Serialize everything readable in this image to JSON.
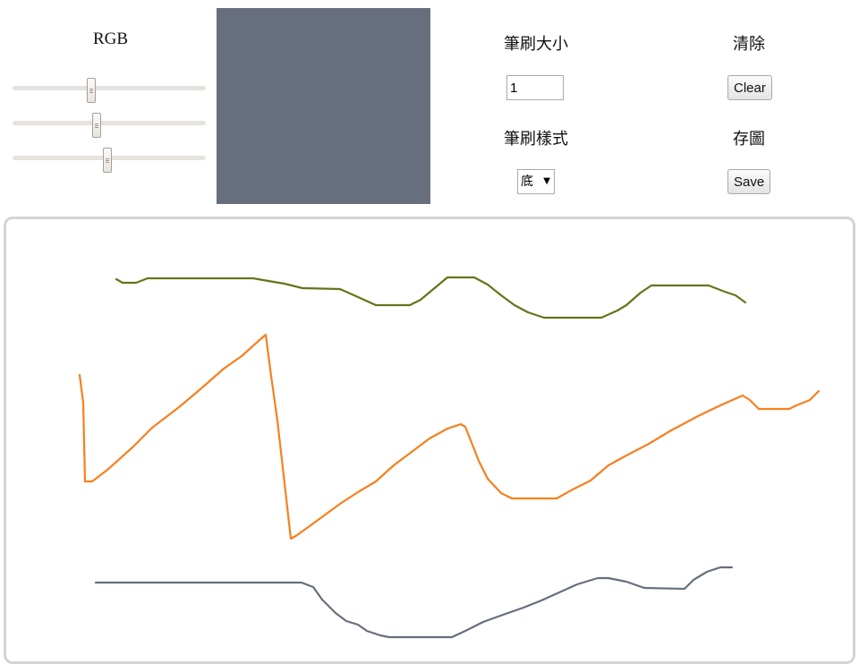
{
  "color_picker": {
    "label": "RGB",
    "red": 103,
    "green": 110,
    "blue": 125,
    "max": 255,
    "swatch_color": "#676e7d"
  },
  "brush_size": {
    "label": "筆刷大小",
    "value": "1"
  },
  "brush_style": {
    "label": "筆刷樣式",
    "selected": "底"
  },
  "clear": {
    "label": "清除",
    "button": "Clear"
  },
  "save": {
    "label": "存圖",
    "button": "Save"
  },
  "strokes": [
    {
      "name": "olive-stroke",
      "color": "#68731a"
    },
    {
      "name": "orange-stroke",
      "color": "#f6801e"
    },
    {
      "name": "slate-stroke",
      "color": "#676e7d"
    }
  ]
}
